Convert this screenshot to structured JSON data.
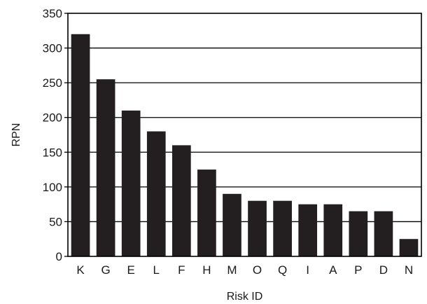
{
  "chart_data": {
    "type": "bar",
    "title": "",
    "xlabel": "Risk ID",
    "ylabel": "RPN",
    "categories": [
      "K",
      "G",
      "E",
      "L",
      "F",
      "H",
      "M",
      "O",
      "Q",
      "I",
      "A",
      "P",
      "D",
      "N"
    ],
    "values": [
      320,
      255,
      210,
      180,
      160,
      125,
      90,
      80,
      80,
      75,
      75,
      65,
      65,
      25
    ],
    "ylim": [
      0,
      350
    ],
    "yticks": [
      0,
      50,
      100,
      150,
      200,
      250,
      300,
      350
    ],
    "grid": "horizontal",
    "legend": "none",
    "bar_color": "#231f20",
    "grid_color": "#000000"
  }
}
